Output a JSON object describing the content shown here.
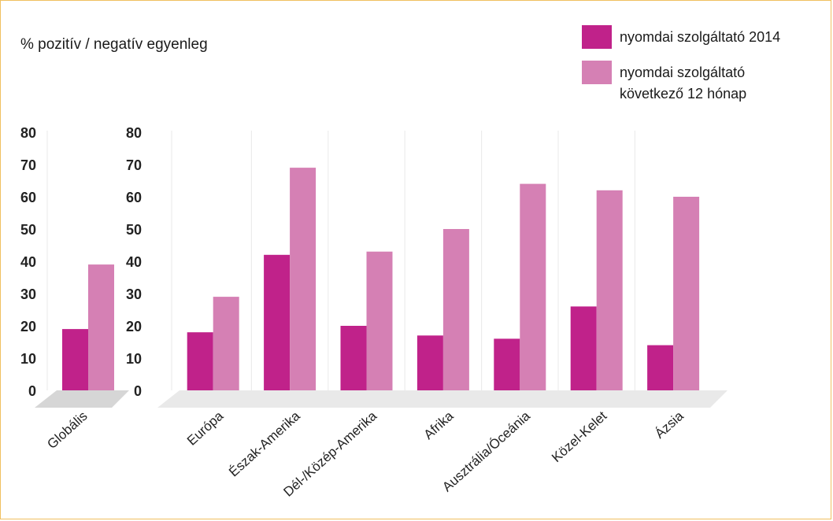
{
  "chart_data": {
    "type": "bar",
    "ylabel": "% pozitív / negatív egyenleg",
    "ylim": [
      0,
      80
    ],
    "yticks": [
      0,
      10,
      20,
      30,
      40,
      50,
      60,
      70,
      80
    ],
    "legend_position": "top-right",
    "series": [
      {
        "name": "nyomdai szolgáltató 2014",
        "color": "#c0228a"
      },
      {
        "name": "nyomdai szolgáltató\nkövetkező 12 hónap",
        "color": "#d580b4"
      }
    ],
    "panels": [
      {
        "categories": [
          "Globális"
        ],
        "series_values": [
          [
            19
          ],
          [
            39
          ]
        ]
      },
      {
        "categories": [
          "Európa",
          "Észak-Amerika",
          "Dél-/Közép-Amerika",
          "Afrika",
          "Ausztrália/Óceánia",
          "Közel-Kelet",
          "Ázsia"
        ],
        "series_values": [
          [
            18,
            42,
            20,
            17,
            16,
            26,
            14
          ],
          [
            29,
            69,
            43,
            50,
            64,
            62,
            60
          ]
        ]
      }
    ]
  }
}
